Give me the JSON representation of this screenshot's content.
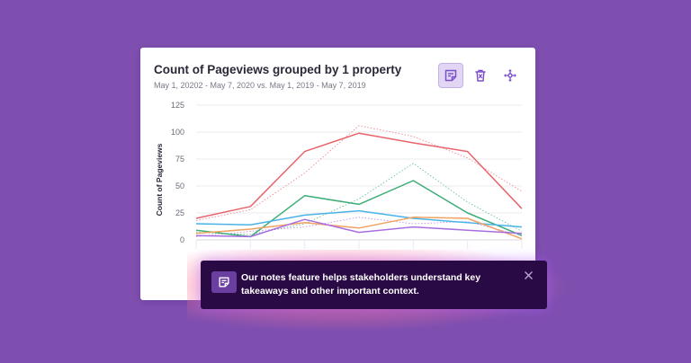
{
  "card": {
    "title": "Count of Pageviews grouped by 1 property",
    "subtitle": "May 1, 20202 - May 7, 2020 vs. May 1, 2019 - May 7, 2019"
  },
  "toolbar": [
    {
      "icon": "notes-icon",
      "active": true
    },
    {
      "icon": "delete-icon",
      "active": false
    },
    {
      "icon": "move-icon",
      "active": false
    }
  ],
  "chart_data": {
    "type": "line",
    "ylabel": "Count of Pageviews",
    "ylim": [
      0,
      125
    ],
    "yticks": [
      0,
      25,
      50,
      75,
      100,
      125
    ],
    "x": [
      1,
      2,
      3,
      4,
      5,
      6,
      7
    ],
    "grid": true,
    "series": [
      {
        "color": "#e8646c",
        "values": [
          20,
          31,
          82,
          99,
          90,
          82,
          29
        ]
      },
      {
        "color": "#3cae78",
        "values": [
          9,
          3,
          41,
          33,
          55,
          25,
          4
        ]
      },
      {
        "color": "#4ab3e6",
        "values": [
          15,
          14,
          23,
          27,
          20,
          16,
          12
        ]
      },
      {
        "color": "#f0a262",
        "values": [
          6,
          10,
          16,
          11,
          21,
          20,
          1
        ]
      },
      {
        "color": "#a86ee0",
        "values": [
          4,
          3,
          19,
          7,
          12,
          9,
          6
        ]
      }
    ],
    "comparison_series": [
      {
        "color": "#e8646c",
        "values": [
          18,
          28,
          62,
          106,
          96,
          76,
          45
        ]
      },
      {
        "color": "#3cae78",
        "values": [
          7,
          5,
          15,
          38,
          71,
          35,
          8
        ]
      },
      {
        "color": "#a86ee0",
        "values": [
          3,
          8,
          12,
          21,
          15,
          17,
          4
        ]
      }
    ]
  },
  "toast": {
    "message": "Our notes feature helps stakeholders understand key takeaways and other important context.",
    "close_icon": "close-icon",
    "icon": "notes-icon"
  },
  "colors": {
    "background": "#7f4fb0",
    "accent": "#7b4fc9",
    "toast_background": "#2a0a45"
  }
}
